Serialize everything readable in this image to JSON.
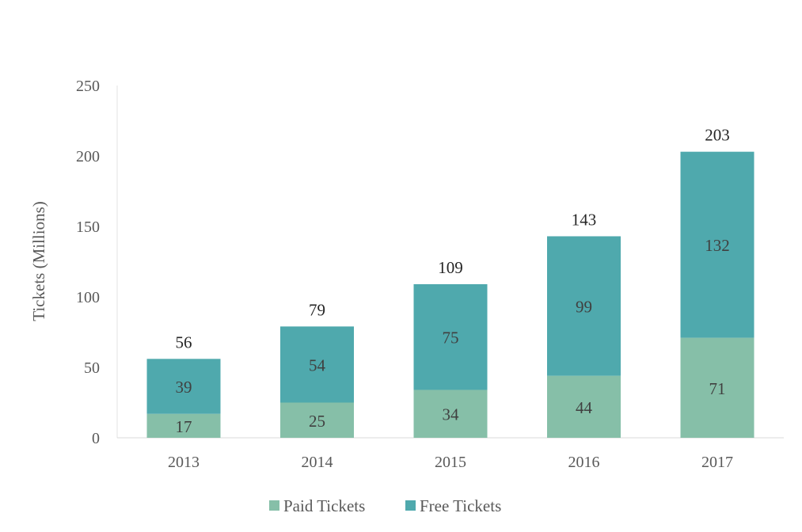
{
  "chart_data": {
    "type": "bar",
    "stacked": true,
    "title": "",
    "xlabel": "",
    "ylabel": "Tickets (Millions)",
    "ylim": [
      0,
      250
    ],
    "yticks": [
      0,
      50,
      100,
      150,
      200,
      250
    ],
    "categories": [
      "2013",
      "2014",
      "2015",
      "2016",
      "2017"
    ],
    "series": [
      {
        "name": "Paid Tickets",
        "values": [
          17,
          25,
          34,
          44,
          71
        ],
        "color": "#86bfa8"
      },
      {
        "name": "Free Tickets",
        "values": [
          39,
          54,
          75,
          99,
          132
        ],
        "color": "#4fa9ad"
      }
    ],
    "totals": [
      56,
      79,
      109,
      143,
      203
    ],
    "grid": false,
    "legend": "bottom"
  }
}
